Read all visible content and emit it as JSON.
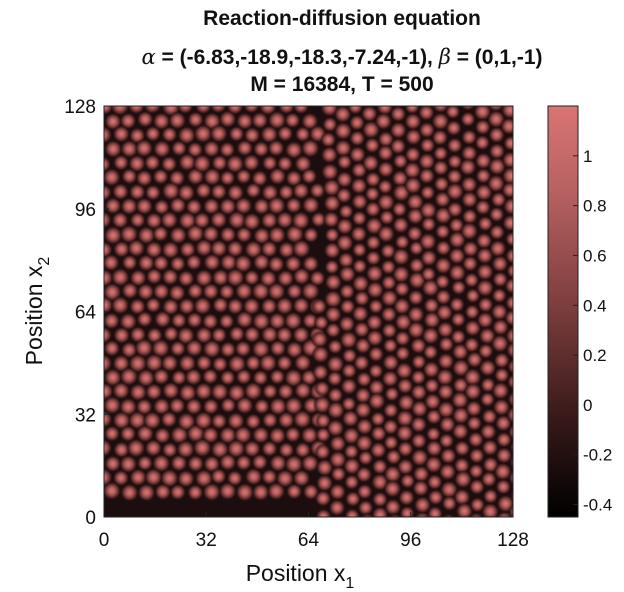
{
  "chart_data": {
    "type": "heatmap",
    "title_line1": "Reaction-diffusion equation",
    "title_line2": {
      "alpha_symbol": "α",
      "alpha_value": " = (-6.83,-18.9,-18.3,-7.24,-1), ",
      "beta_symbol": "β",
      "beta_value": " = (0,1,-1)"
    },
    "title_line3": "M = 16384, T = 500",
    "xlabel": {
      "text": "Position x",
      "sub": "1"
    },
    "ylabel": {
      "text": "Position x",
      "sub": "2"
    },
    "xlim": [
      0,
      128
    ],
    "ylim": [
      0,
      128
    ],
    "x_ticks": [
      "0",
      "32",
      "64",
      "96",
      "128"
    ],
    "y_ticks": [
      "0",
      "32",
      "64",
      "96",
      "128"
    ],
    "colorbar": {
      "range": [
        -0.45,
        1.2
      ],
      "ticks": [
        "-0.4",
        "-0.2",
        "0",
        "0.2",
        "0.4",
        "0.6",
        "0.8",
        "1"
      ],
      "colors": [
        "#000000",
        "#3a1a1a",
        "#7a3c3c",
        "#b86262",
        "#d97474"
      ]
    },
    "description_visual": "hexagonal spot pattern with domains of differing orientation"
  }
}
